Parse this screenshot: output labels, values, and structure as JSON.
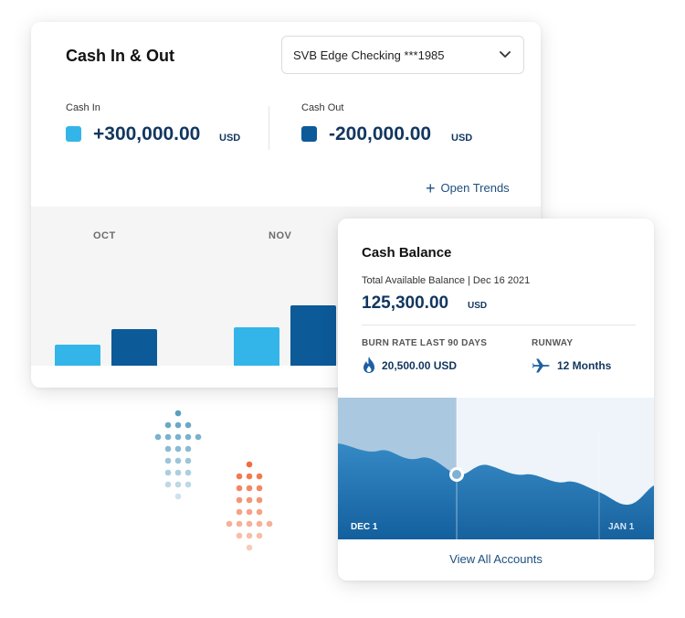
{
  "cash_in_out": {
    "title": "Cash In & Out",
    "account_select": {
      "selected": "SVB Edge Checking ***1985",
      "icon": "chevron-down-icon"
    },
    "cash_in": {
      "label": "Cash In",
      "value": "+300,000.00",
      "unit": "USD",
      "color": "#33b5ea"
    },
    "cash_out": {
      "label": "Cash Out",
      "value": "-200,000.00",
      "unit": "USD",
      "color": "#0d5a99"
    },
    "open_trends_label": "Open Trends",
    "chart_data": {
      "type": "bar",
      "categories": [
        "OCT",
        "NOV"
      ],
      "series": [
        {
          "values": [
            0.13,
            0.24
          ],
          "color": "#33b5ea"
        },
        {
          "values": [
            0.23,
            0.38
          ],
          "color": "#0d5a99"
        }
      ]
    }
  },
  "cash_balance": {
    "title": "Cash Balance",
    "subtitle": "Total Available Balance | Dec 16 2021",
    "value": "125,300.00",
    "unit": "USD",
    "burn_rate": {
      "label": "BURN RATE LAST 90 DAYS",
      "value": "20,500.00 USD",
      "icon": "flame-icon"
    },
    "runway": {
      "label": "RUNWAY",
      "value": "12 Months",
      "icon": "airplane-icon"
    },
    "chart": {
      "start_label": "DEC 1",
      "end_label": "JAN 1",
      "area_color": "#1b6dad"
    },
    "view_all_label": "View All Accounts"
  },
  "decor": {
    "up_arrow_color": "#5a9ec0",
    "down_arrow_color": "#ef6a3c"
  }
}
